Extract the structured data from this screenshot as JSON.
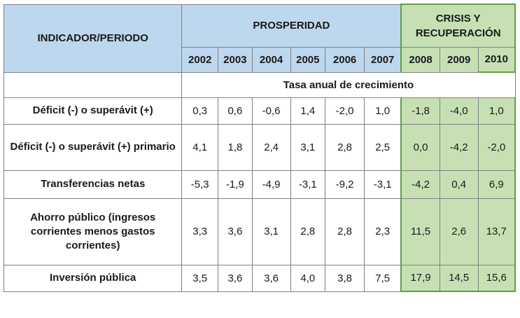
{
  "header": {
    "indicator": "INDICADOR/PERIODO",
    "prosperity": "PROSPERIDAD",
    "crisis": "CRISIS Y RECUPERACIÓN",
    "years": [
      "2002",
      "2003",
      "2004",
      "2005",
      "2006",
      "2007",
      "2008",
      "2009",
      "2010"
    ]
  },
  "subtitle": "Tasa anual de crecimiento",
  "rows": [
    {
      "label": "Déficit (-) o superávit (+)",
      "values": [
        "0,3",
        "0,6",
        "-0,6",
        "1,4",
        "-2,0",
        "1,0",
        "-1,8",
        "-4,0",
        "1,0"
      ]
    },
    {
      "label": "Déficit (-) o superávit (+) primario",
      "values": [
        "4,1",
        "1,8",
        "2,4",
        "3,1",
        "2,8",
        "2,5",
        "0,0",
        "-4,2",
        "-2,0"
      ]
    },
    {
      "label": "Transferencias netas",
      "values": [
        "-5,3",
        "-1,9",
        "-4,9",
        "-3,1",
        "-9,2",
        "-3,1",
        "-4,2",
        "0,4",
        "6,9"
      ]
    },
    {
      "label": "Ahorro público (ingresos corrientes menos gastos corrientes)",
      "values": [
        "3,3",
        "3,6",
        "3,1",
        "2,8",
        "2,8",
        "2,3",
        "11,5",
        "2,6",
        "13,7"
      ]
    },
    {
      "label": "Inversión pública",
      "values": [
        "3,5",
        "3,6",
        "3,6",
        "4,0",
        "3,8",
        "7,5",
        "17,9",
        "14,5",
        "15,6"
      ]
    }
  ],
  "colors": {
    "prosperity_header": "#bdd7ee",
    "crisis_fill": "#c6e0b4",
    "crisis_border": "#5f9e45"
  }
}
